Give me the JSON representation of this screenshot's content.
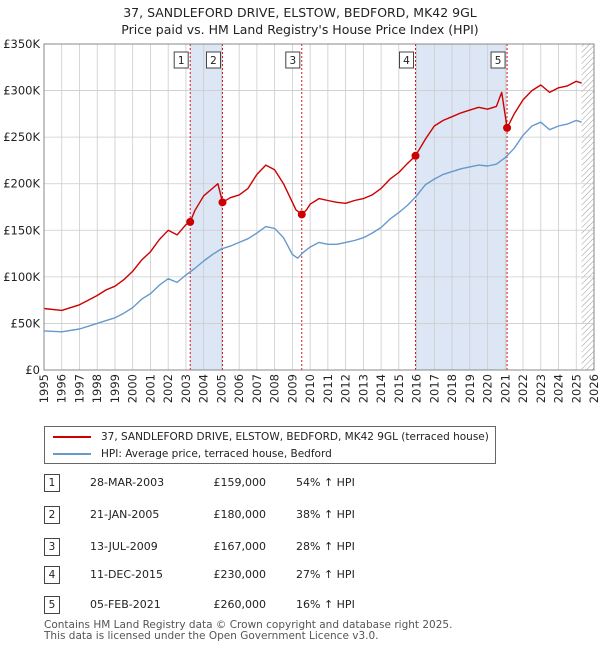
{
  "title_line1": "37, SANDLEFORD DRIVE, ELSTOW, BEDFORD, MK42 9GL",
  "title_line2": "Price paid vs. HM Land Registry's House Price Index (HPI)",
  "legend": {
    "property_label": "37, SANDLEFORD DRIVE, ELSTOW, BEDFORD, MK42 9GL (terraced house)",
    "hpi_label": "HPI: Average price, terraced house, Bedford"
  },
  "sales": [
    {
      "num": "1",
      "date": "28-MAR-2003",
      "price": "£159,000",
      "hpi": "54% ↑ HPI"
    },
    {
      "num": "2",
      "date": "21-JAN-2005",
      "price": "£180,000",
      "hpi": "38% ↑ HPI"
    },
    {
      "num": "3",
      "date": "13-JUL-2009",
      "price": "£167,000",
      "hpi": "28% ↑ HPI"
    },
    {
      "num": "4",
      "date": "11-DEC-2015",
      "price": "£230,000",
      "hpi": "27% ↑ HPI"
    },
    {
      "num": "5",
      "date": "05-FEB-2021",
      "price": "£260,000",
      "hpi": "16% ↑ HPI"
    }
  ],
  "footer_line1": "Contains HM Land Registry data © Crown copyright and database right 2025.",
  "footer_line2": "This data is licensed under the Open Government Licence v3.0.",
  "colors": {
    "property": "#cc0000",
    "hpi": "#6699cc",
    "shade": "#dde6f5",
    "grid": "#cccccc"
  },
  "chart_data": {
    "type": "line",
    "title": "37, SANDLEFORD DRIVE, ELSTOW, BEDFORD, MK42 9GL",
    "subtitle": "Price paid vs. HM Land Registry's House Price Index (HPI)",
    "xlim": [
      1995,
      2026
    ],
    "ylim": [
      0,
      350000
    ],
    "x_ticks": [
      1995,
      1996,
      1997,
      1998,
      1999,
      2000,
      2001,
      2002,
      2003,
      2004,
      2005,
      2006,
      2007,
      2008,
      2009,
      2010,
      2011,
      2012,
      2013,
      2014,
      2015,
      2016,
      2017,
      2018,
      2019,
      2020,
      2021,
      2022,
      2023,
      2024,
      2025,
      2026
    ],
    "y_ticks": [
      {
        "value": 0,
        "label": "£0"
      },
      {
        "value": 50000,
        "label": "£50K"
      },
      {
        "value": 100000,
        "label": "£100K"
      },
      {
        "value": 150000,
        "label": "£150K"
      },
      {
        "value": 200000,
        "label": "£200K"
      },
      {
        "value": 250000,
        "label": "£250K"
      },
      {
        "value": 300000,
        "label": "£300K"
      },
      {
        "value": 350000,
        "label": "£350K"
      }
    ],
    "grid": true,
    "shaded_ranges": [
      [
        2003.24,
        2005.06
      ],
      [
        2015.94,
        2021.1
      ]
    ],
    "hatched_from": 2025.3,
    "series": [
      {
        "name": "37, SANDLEFORD DRIVE, ELSTOW, BEDFORD, MK42 9GL (terraced house)",
        "x": [
          1995,
          1996,
          1997,
          1997.5,
          1998,
          1998.5,
          1999,
          1999.5,
          2000,
          2000.5,
          2001,
          2001.5,
          2002,
          2002.5,
          2003,
          2003.24,
          2003.5,
          2004,
          2004.5,
          2004.8,
          2005.06,
          2005.5,
          2006,
          2006.5,
          2007,
          2007.5,
          2008,
          2008.5,
          2009,
          2009.2,
          2009.53,
          2009.8,
          2010,
          2010.5,
          2011,
          2011.5,
          2012,
          2012.5,
          2013,
          2013.5,
          2014,
          2014.5,
          2015,
          2015.5,
          2015.94,
          2016.5,
          2017,
          2017.5,
          2018,
          2018.5,
          2019,
          2019.5,
          2020,
          2020.5,
          2020.8,
          2021.1,
          2021.5,
          2022,
          2022.5,
          2023,
          2023.5,
          2024,
          2024.5,
          2025,
          2025.3
        ],
        "values": [
          66000,
          64000,
          70000,
          75000,
          80000,
          86000,
          90000,
          97000,
          106000,
          118000,
          127000,
          140000,
          150000,
          145000,
          156000,
          159000,
          171000,
          187000,
          195000,
          200000,
          180000,
          185000,
          188000,
          195000,
          210000,
          220000,
          215000,
          200000,
          180000,
          172000,
          167000,
          172000,
          178000,
          184000,
          182000,
          180000,
          179000,
          182000,
          184000,
          188000,
          195000,
          205000,
          212000,
          222000,
          230000,
          248000,
          262000,
          268000,
          272000,
          276000,
          279000,
          282000,
          280000,
          283000,
          298000,
          260000,
          275000,
          290000,
          300000,
          306000,
          298000,
          303000,
          305000,
          310000,
          308000
        ]
      },
      {
        "name": "HPI: Average price, terraced house, Bedford",
        "x": [
          1995,
          1996,
          1997,
          1997.5,
          1998,
          1998.5,
          1999,
          1999.5,
          2000,
          2000.5,
          2001,
          2001.5,
          2002,
          2002.5,
          2003,
          2003.5,
          2004,
          2004.5,
          2005,
          2005.5,
          2006,
          2006.5,
          2007,
          2007.5,
          2008,
          2008.5,
          2009,
          2009.3,
          2009.6,
          2010,
          2010.5,
          2011,
          2011.5,
          2012,
          2012.5,
          2013,
          2013.5,
          2014,
          2014.5,
          2015,
          2015.5,
          2016,
          2016.5,
          2017,
          2017.5,
          2018,
          2018.5,
          2019,
          2019.5,
          2020,
          2020.5,
          2021,
          2021.5,
          2022,
          2022.5,
          2023,
          2023.5,
          2024,
          2024.5,
          2025,
          2025.3
        ],
        "values": [
          42000,
          41000,
          44000,
          47000,
          50000,
          53000,
          56000,
          61000,
          67000,
          76000,
          82000,
          91000,
          98000,
          94000,
          102000,
          109000,
          117000,
          124000,
          130000,
          133000,
          137000,
          141000,
          147000,
          154000,
          152000,
          142000,
          124000,
          120000,
          126000,
          132000,
          137000,
          135000,
          135000,
          137000,
          139000,
          142000,
          147000,
          153000,
          162000,
          169000,
          177000,
          187000,
          199000,
          205000,
          210000,
          213000,
          216000,
          218000,
          220000,
          219000,
          221000,
          228000,
          238000,
          252000,
          262000,
          266000,
          258000,
          262000,
          264000,
          268000,
          266000
        ]
      }
    ],
    "sale_points": [
      {
        "label": "1",
        "x": 2003.24,
        "y": 159000
      },
      {
        "label": "2",
        "x": 2005.06,
        "y": 180000
      },
      {
        "label": "3",
        "x": 2009.53,
        "y": 167000
      },
      {
        "label": "4",
        "x": 2015.94,
        "y": 230000
      },
      {
        "label": "5",
        "x": 2021.1,
        "y": 260000
      }
    ]
  }
}
